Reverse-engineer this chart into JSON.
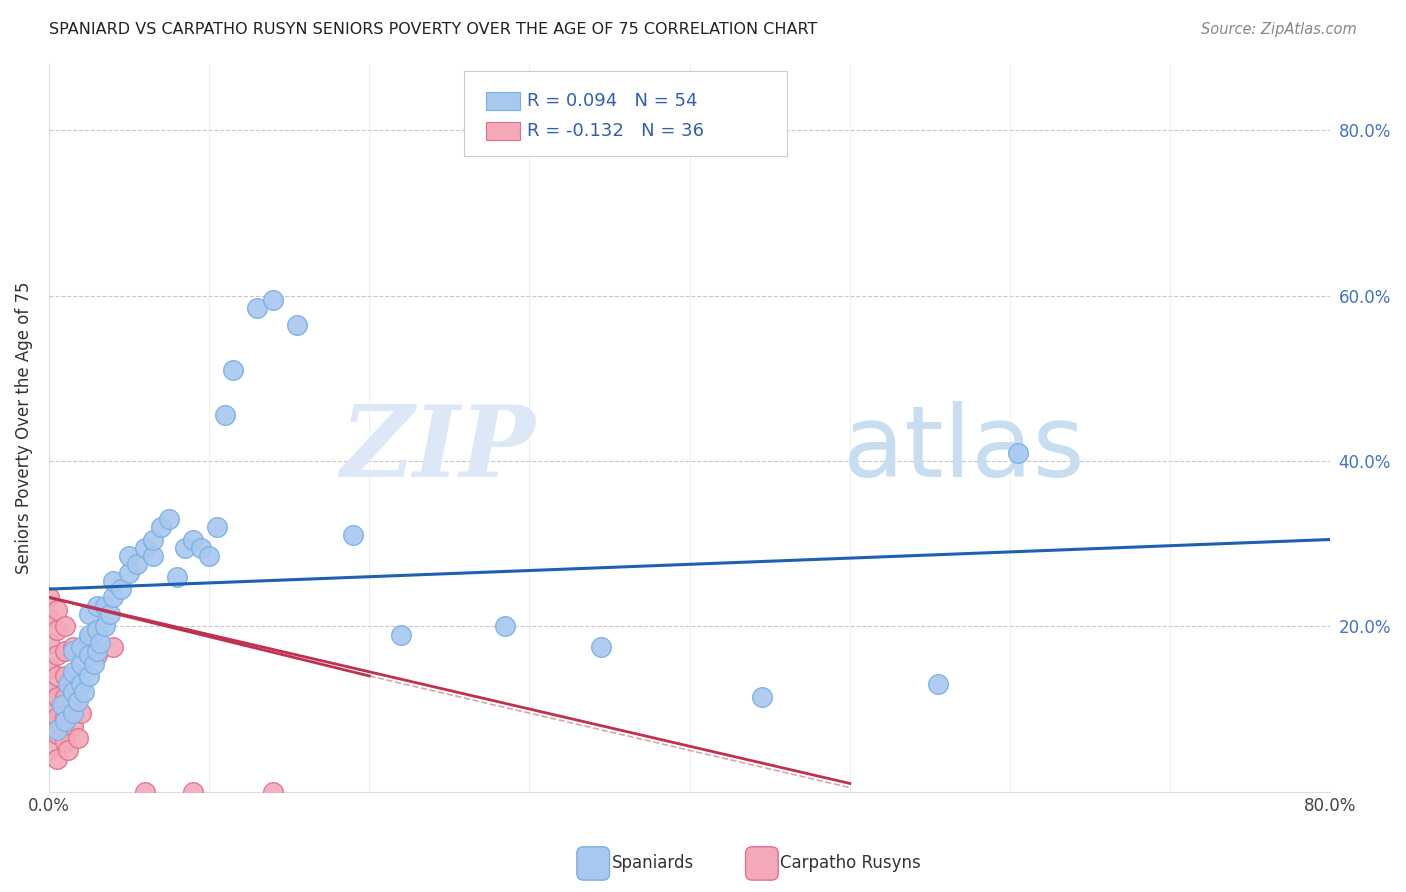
{
  "title": "SPANIARD VS CARPATHO RUSYN SENIORS POVERTY OVER THE AGE OF 75 CORRELATION CHART",
  "source": "Source: ZipAtlas.com",
  "ylabel": "Seniors Poverty Over the Age of 75",
  "xlim": [
    0.0,
    0.8
  ],
  "ylim": [
    0.0,
    0.88
  ],
  "spaniard_color": "#a8c8f0",
  "spaniard_edge": "#7ab0e0",
  "rusyn_color": "#f4a8b8",
  "rusyn_edge": "#e07090",
  "line_color_blue": "#2060b0",
  "line_color_pink": "#c03050",
  "watermark_zip_color": "#dce8f5",
  "watermark_atlas_color": "#c8ddf0",
  "spaniard_points": [
    [
      0.005,
      0.075
    ],
    [
      0.008,
      0.105
    ],
    [
      0.01,
      0.085
    ],
    [
      0.012,
      0.13
    ],
    [
      0.015,
      0.095
    ],
    [
      0.015,
      0.12
    ],
    [
      0.015,
      0.145
    ],
    [
      0.015,
      0.17
    ],
    [
      0.018,
      0.11
    ],
    [
      0.02,
      0.13
    ],
    [
      0.02,
      0.155
    ],
    [
      0.02,
      0.175
    ],
    [
      0.022,
      0.12
    ],
    [
      0.025,
      0.14
    ],
    [
      0.025,
      0.165
    ],
    [
      0.025,
      0.19
    ],
    [
      0.025,
      0.215
    ],
    [
      0.028,
      0.155
    ],
    [
      0.03,
      0.17
    ],
    [
      0.03,
      0.195
    ],
    [
      0.03,
      0.225
    ],
    [
      0.032,
      0.18
    ],
    [
      0.035,
      0.2
    ],
    [
      0.035,
      0.225
    ],
    [
      0.038,
      0.215
    ],
    [
      0.04,
      0.235
    ],
    [
      0.04,
      0.255
    ],
    [
      0.045,
      0.245
    ],
    [
      0.05,
      0.265
    ],
    [
      0.05,
      0.285
    ],
    [
      0.055,
      0.275
    ],
    [
      0.06,
      0.295
    ],
    [
      0.065,
      0.285
    ],
    [
      0.065,
      0.305
    ],
    [
      0.07,
      0.32
    ],
    [
      0.075,
      0.33
    ],
    [
      0.08,
      0.26
    ],
    [
      0.085,
      0.295
    ],
    [
      0.09,
      0.305
    ],
    [
      0.095,
      0.295
    ],
    [
      0.1,
      0.285
    ],
    [
      0.105,
      0.32
    ],
    [
      0.11,
      0.455
    ],
    [
      0.115,
      0.51
    ],
    [
      0.13,
      0.585
    ],
    [
      0.14,
      0.595
    ],
    [
      0.155,
      0.565
    ],
    [
      0.19,
      0.31
    ],
    [
      0.22,
      0.19
    ],
    [
      0.285,
      0.2
    ],
    [
      0.345,
      0.175
    ],
    [
      0.445,
      0.115
    ],
    [
      0.555,
      0.13
    ],
    [
      0.605,
      0.41
    ]
  ],
  "rusyn_points": [
    [
      0.0,
      0.05
    ],
    [
      0.0,
      0.08
    ],
    [
      0.0,
      0.1
    ],
    [
      0.0,
      0.12
    ],
    [
      0.0,
      0.15
    ],
    [
      0.0,
      0.18
    ],
    [
      0.0,
      0.21
    ],
    [
      0.0,
      0.235
    ],
    [
      0.005,
      0.04
    ],
    [
      0.005,
      0.07
    ],
    [
      0.005,
      0.09
    ],
    [
      0.005,
      0.115
    ],
    [
      0.005,
      0.14
    ],
    [
      0.005,
      0.165
    ],
    [
      0.005,
      0.195
    ],
    [
      0.005,
      0.22
    ],
    [
      0.008,
      0.08
    ],
    [
      0.01,
      0.06
    ],
    [
      0.01,
      0.09
    ],
    [
      0.01,
      0.115
    ],
    [
      0.01,
      0.14
    ],
    [
      0.01,
      0.17
    ],
    [
      0.01,
      0.2
    ],
    [
      0.012,
      0.05
    ],
    [
      0.015,
      0.08
    ],
    [
      0.015,
      0.11
    ],
    [
      0.015,
      0.14
    ],
    [
      0.015,
      0.175
    ],
    [
      0.018,
      0.065
    ],
    [
      0.02,
      0.095
    ],
    [
      0.025,
      0.185
    ],
    [
      0.03,
      0.165
    ],
    [
      0.04,
      0.175
    ],
    [
      0.06,
      0.0
    ],
    [
      0.09,
      0.0
    ],
    [
      0.14,
      0.0
    ]
  ],
  "blue_line_x": [
    0.0,
    0.8
  ],
  "blue_line_y": [
    0.245,
    0.305
  ],
  "pink_line_x": [
    0.0,
    0.5
  ],
  "pink_line_y": [
    0.235,
    0.01
  ]
}
